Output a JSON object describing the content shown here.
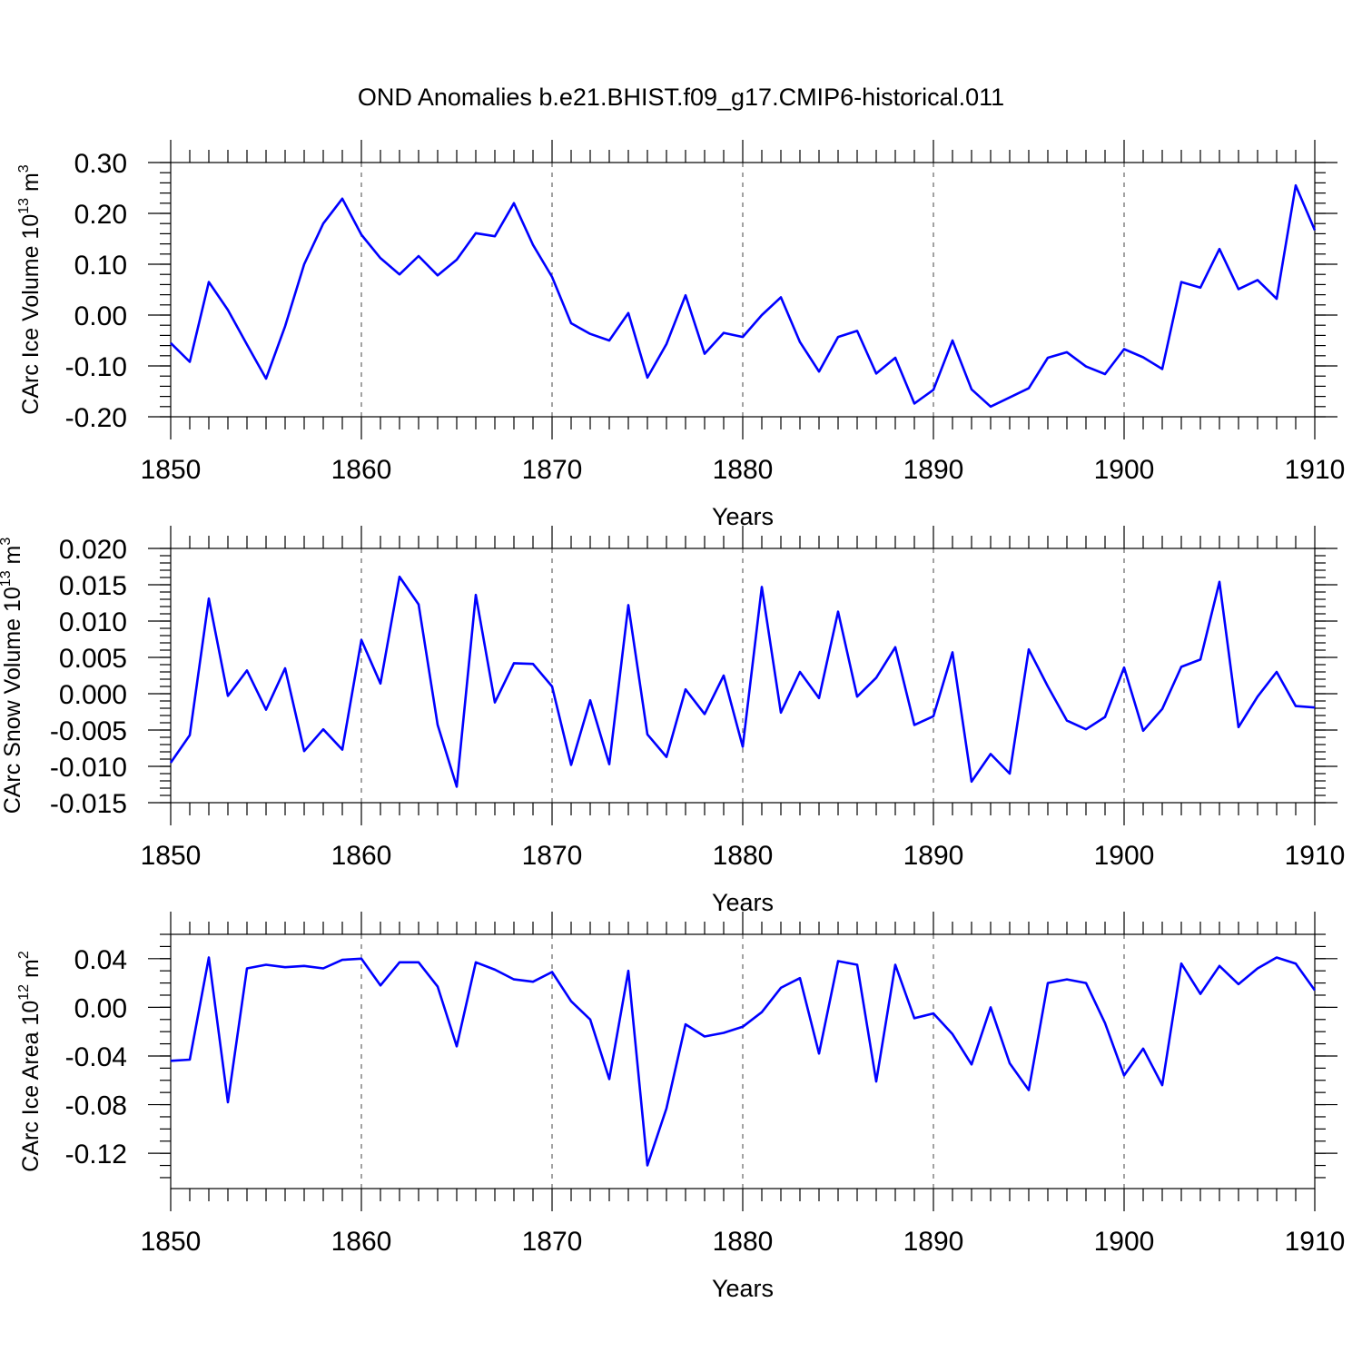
{
  "chart_data": {
    "type": "line",
    "title": "OND Anomalies b.e21.BHIST.f09_g17.CMIP6-historical.011",
    "panels": [
      {
        "ylabel": "CArc Ice Volume 10",
        "ylabel_exp": "13",
        "ylabel_unit": " m",
        "ylabel_unit_exp": "3",
        "xlabel": "Years",
        "xlim": [
          1850,
          1910
        ],
        "ylim": [
          -0.2,
          0.3
        ],
        "yticks": [
          "0.30",
          "0.20",
          "0.10",
          "0.00",
          "-0.10",
          "-0.20"
        ],
        "ytick_values": [
          0.3,
          0.2,
          0.1,
          0.0,
          -0.1,
          -0.2
        ],
        "yminor_step": 0.02,
        "xticks": [
          "1850",
          "1860",
          "1870",
          "1880",
          "1890",
          "1900",
          "1910"
        ],
        "xtick_values": [
          1850,
          1860,
          1870,
          1880,
          1890,
          1900,
          1910
        ],
        "grid": "dashed vertical at major x ticks",
        "series": [
          {
            "name": "CArc Ice Volume",
            "color": "#0000ff",
            "x_start": 1850,
            "values": [
              -0.055,
              -0.092,
              0.065,
              0.01,
              -0.058,
              -0.125,
              -0.022,
              0.1,
              0.18,
              0.229,
              0.158,
              0.112,
              0.08,
              0.116,
              0.078,
              0.109,
              0.161,
              0.155,
              0.22,
              0.138,
              0.075,
              -0.016,
              -0.037,
              -0.05,
              0.004,
              -0.123,
              -0.057,
              0.039,
              -0.076,
              -0.035,
              -0.043,
              0.0,
              0.035,
              -0.053,
              -0.111,
              -0.043,
              -0.031,
              -0.115,
              -0.084,
              -0.174,
              -0.147,
              -0.05,
              -0.146,
              -0.18,
              -0.162,
              -0.144,
              -0.084,
              -0.073,
              -0.101,
              -0.116,
              -0.067,
              -0.083,
              -0.106,
              0.065,
              0.054,
              0.13,
              0.051,
              0.069,
              0.032,
              0.255,
              0.167
            ]
          }
        ]
      },
      {
        "ylabel": "CArc Snow Volume 10",
        "ylabel_exp": "13",
        "ylabel_unit": " m",
        "ylabel_unit_exp": "3",
        "xlabel": "Years",
        "xlim": [
          1850,
          1910
        ],
        "ylim": [
          -0.015,
          0.02
        ],
        "yticks": [
          "0.020",
          "0.015",
          "0.010",
          "0.005",
          "0.000",
          "-0.005",
          "-0.010",
          "-0.015"
        ],
        "ytick_values": [
          0.02,
          0.015,
          0.01,
          0.005,
          0.0,
          -0.005,
          -0.01,
          -0.015
        ],
        "yminor_step": 0.001,
        "xticks": [
          "1850",
          "1860",
          "1870",
          "1880",
          "1890",
          "1900",
          "1910"
        ],
        "xtick_values": [
          1850,
          1860,
          1870,
          1880,
          1890,
          1900,
          1910
        ],
        "grid": "dashed vertical at major x ticks",
        "series": [
          {
            "name": "CArc Snow Volume",
            "color": "#0000ff",
            "x_start": 1850,
            "values": [
              -0.0095,
              -0.0057,
              0.0131,
              -0.0003,
              0.0032,
              -0.0022,
              0.0035,
              -0.0079,
              -0.0049,
              -0.0077,
              0.0074,
              0.0014,
              0.0161,
              0.0123,
              -0.0043,
              -0.0128,
              0.0136,
              -0.0012,
              0.0042,
              0.0041,
              0.001,
              -0.0098,
              -0.0009,
              -0.0097,
              0.0122,
              -0.0056,
              -0.0087,
              0.0006,
              -0.0028,
              0.0025,
              -0.0073,
              0.0147,
              -0.0026,
              0.003,
              -0.0006,
              0.0113,
              -0.0004,
              0.0022,
              0.0064,
              -0.0043,
              -0.0031,
              0.0057,
              -0.0121,
              -0.0083,
              -0.011,
              0.0061,
              0.001,
              -0.0037,
              -0.0049,
              -0.0032,
              0.0036,
              -0.0051,
              -0.0021,
              0.0037,
              0.0047,
              0.0154,
              -0.0046,
              -0.0004,
              0.003,
              -0.0017,
              -0.0019
            ]
          }
        ]
      },
      {
        "ylabel": "CArc Ice Area 10",
        "ylabel_exp": "12",
        "ylabel_unit": " m",
        "ylabel_unit_exp": "2",
        "xlabel": "Years",
        "xlim": [
          1850,
          1910
        ],
        "ylim": [
          -0.149,
          0.06
        ],
        "yticks": [
          "0.04",
          "0.00",
          "-0.04",
          "-0.08",
          "-0.12"
        ],
        "ytick_values": [
          0.04,
          0.0,
          -0.04,
          -0.08,
          -0.12
        ],
        "yminor_step": 0.01,
        "xticks": [
          "1850",
          "1860",
          "1870",
          "1880",
          "1890",
          "1900",
          "1910"
        ],
        "xtick_values": [
          1850,
          1860,
          1870,
          1880,
          1890,
          1900,
          1910
        ],
        "grid": "dashed vertical at major x ticks",
        "series": [
          {
            "name": "CArc Ice Area",
            "color": "#0000ff",
            "x_start": 1850,
            "values": [
              -0.044,
              -0.043,
              0.041,
              -0.078,
              0.032,
              0.035,
              0.033,
              0.034,
              0.032,
              0.039,
              0.04,
              0.018,
              0.037,
              0.037,
              0.017,
              -0.032,
              0.037,
              0.031,
              0.023,
              0.021,
              0.029,
              0.005,
              -0.01,
              -0.059,
              0.03,
              -0.13,
              -0.083,
              -0.014,
              -0.024,
              -0.021,
              -0.016,
              -0.004,
              0.016,
              0.024,
              -0.038,
              0.038,
              0.035,
              -0.061,
              0.035,
              -0.009,
              -0.005,
              -0.022,
              -0.047,
              0.0,
              -0.046,
              -0.068,
              0.02,
              0.023,
              0.02,
              -0.013,
              -0.056,
              -0.034,
              -0.064,
              0.036,
              0.011,
              0.034,
              0.019,
              0.032,
              0.041,
              0.036,
              0.014
            ]
          }
        ]
      }
    ]
  }
}
